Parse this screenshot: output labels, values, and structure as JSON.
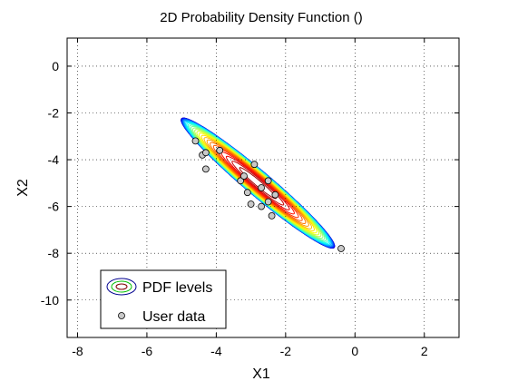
{
  "chart_data": {
    "type": "contour",
    "title": "2D Probability Density Function ()",
    "xlabel": "X1",
    "ylabel": "X2",
    "xlim": [
      -8.3,
      3
    ],
    "ylim": [
      -11.6,
      1.2
    ],
    "xticks": [
      -8,
      -6,
      -4,
      -2,
      0,
      2
    ],
    "yticks": [
      0,
      -2,
      -4,
      -6,
      -8,
      -10
    ],
    "grid": true,
    "grid_style": "dotted",
    "legend_position": "bottom-left",
    "legend": [
      {
        "label": "PDF levels",
        "kind": "contour"
      },
      {
        "label": "User data",
        "kind": "marker"
      }
    ],
    "distribution": {
      "mean": [
        -2.8,
        -5.0
      ],
      "sigma_x1": 1.75,
      "sigma_x2": 2.2,
      "correlation": -0.97,
      "levels": 30,
      "colormap": "jet",
      "inner_cutoff": 0.45
    },
    "points": [
      {
        "x": -4.6,
        "y": -3.2
      },
      {
        "x": -4.4,
        "y": -3.8
      },
      {
        "x": -4.3,
        "y": -3.7
      },
      {
        "x": -3.9,
        "y": -3.6
      },
      {
        "x": -4.3,
        "y": -4.4
      },
      {
        "x": -3.3,
        "y": -4.9
      },
      {
        "x": -3.2,
        "y": -4.7
      },
      {
        "x": -2.9,
        "y": -4.2
      },
      {
        "x": -2.7,
        "y": -5.2
      },
      {
        "x": -3.1,
        "y": -5.4
      },
      {
        "x": -2.5,
        "y": -4.9
      },
      {
        "x": -2.3,
        "y": -5.5
      },
      {
        "x": -2.5,
        "y": -5.8
      },
      {
        "x": -2.7,
        "y": -6.0
      },
      {
        "x": -3.0,
        "y": -5.9
      },
      {
        "x": -2.4,
        "y": -6.4
      },
      {
        "x": -0.4,
        "y": -7.8
      }
    ],
    "colors": {
      "marker_fill": "#c8c8c8",
      "marker_edge": "#000000",
      "legend_contour_outer": "#00008f",
      "legend_contour_inner": "#800000"
    }
  }
}
